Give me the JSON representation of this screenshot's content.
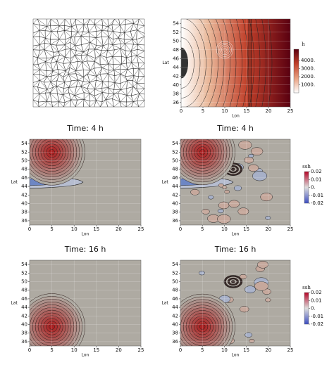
{
  "chart_data": [
    {
      "type": "mesh"
    },
    {
      "type": "contour",
      "field": "h",
      "xlabel": "Lon",
      "ylabel": "Lat",
      "xlim": [
        0,
        25
      ],
      "ylim": [
        35,
        55
      ],
      "xticks": [
        0,
        5,
        10,
        15,
        20,
        25
      ],
      "yticks": [
        36,
        38,
        40,
        42,
        44,
        46,
        48,
        50,
        52,
        54
      ],
      "grid": true,
      "colorbar": {
        "title": "h",
        "lim": [
          0,
          5400
        ],
        "colors": [
          "#ffffff",
          "#e8a080",
          "#c0402a",
          "#5a0010"
        ],
        "ticks": [
          {
            "value": 1000,
            "label": "1000."
          },
          {
            "value": 2000,
            "label": "2000."
          },
          {
            "value": 3000,
            "label": "3000."
          },
          {
            "value": 4000,
            "label": "4000."
          }
        ]
      }
    },
    {
      "type": "contour",
      "field": "ssh-smooth-4",
      "title": "Time: 4 h",
      "xlabel": "Lon",
      "ylabel": "Lat",
      "xlim": [
        0,
        25
      ],
      "ylim": [
        35,
        55
      ],
      "xticks": [
        0,
        5,
        10,
        15,
        20,
        25
      ],
      "yticks": [
        36,
        38,
        40,
        42,
        44,
        46,
        48,
        50,
        52,
        54
      ],
      "grid": true
    },
    {
      "type": "contour",
      "field": "ssh-noisy-4",
      "title": "Time: 4 h",
      "xlabel": "Lon",
      "ylabel": "Lat",
      "xlim": [
        0,
        25
      ],
      "ylim": [
        35,
        55
      ],
      "xticks": [
        0,
        5,
        10,
        15,
        20,
        25
      ],
      "yticks": [
        36,
        38,
        40,
        42,
        44,
        46,
        48,
        50,
        52,
        54
      ],
      "grid": true,
      "colorbar": {
        "title": "ssh",
        "lim": [
          -0.02,
          0.02
        ],
        "colors": [
          "#3b4cc0",
          "#dddddd",
          "#b40426"
        ],
        "ticks": [
          0.02,
          0.01,
          {
            "value": 0,
            "label": "0."
          },
          -0.01,
          -0.02
        ]
      }
    },
    {
      "type": "contour",
      "field": "ssh-smooth-16",
      "title": "Time: 16 h",
      "xlabel": "Lon",
      "ylabel": "Lat",
      "xlim": [
        0,
        25
      ],
      "ylim": [
        35,
        55
      ],
      "xticks": [
        0,
        5,
        10,
        15,
        20,
        25
      ],
      "yticks": [
        36,
        38,
        40,
        42,
        44,
        46,
        48,
        50,
        52,
        54
      ],
      "grid": true
    },
    {
      "type": "contour",
      "field": "ssh-noisy-16",
      "title": "Time: 16 h",
      "xlabel": "Lon",
      "ylabel": "Lat",
      "xlim": [
        0,
        25
      ],
      "ylim": [
        35,
        55
      ],
      "xticks": [
        0,
        5,
        10,
        15,
        20,
        25
      ],
      "yticks": [
        36,
        38,
        40,
        42,
        44,
        46,
        48,
        50,
        52,
        54
      ],
      "grid": true,
      "colorbar": {
        "title": "ssh",
        "lim": [
          -0.02,
          0.02
        ],
        "colors": [
          "#3b4cc0",
          "#dddddd",
          "#b40426"
        ],
        "ticks": [
          0.02,
          0.01,
          {
            "value": 0,
            "label": "0."
          },
          -0.01,
          -0.02
        ]
      }
    }
  ]
}
